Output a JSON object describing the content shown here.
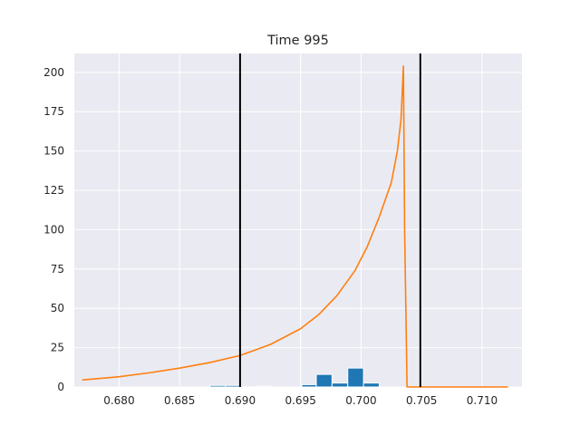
{
  "chart_data": {
    "type": "bar",
    "title": "Time 995",
    "xlabel": "",
    "ylabel": "",
    "xlim": [
      0.6763,
      0.7133
    ],
    "ylim": [
      0,
      212
    ],
    "grid": true,
    "legend": "none",
    "x_ticks": [
      0.68,
      0.685,
      0.69,
      0.695,
      0.7,
      0.705,
      0.71
    ],
    "x_tick_labels": [
      "0.680",
      "0.685",
      "0.690",
      "0.695",
      "0.700",
      "0.705",
      "0.710"
    ],
    "y_ticks": [
      0,
      25,
      50,
      75,
      100,
      125,
      150,
      175,
      200
    ],
    "y_tick_labels": [
      "0",
      "25",
      "50",
      "75",
      "100",
      "125",
      "150",
      "175",
      "200"
    ],
    "histogram": {
      "color": "#1f77b4",
      "bins": [
        {
          "x0": 0.6875,
          "x1": 0.6888,
          "count": 1
        },
        {
          "x0": 0.6888,
          "x1": 0.69,
          "count": 1
        },
        {
          "x0": 0.6913,
          "x1": 0.6926,
          "count": 0.6
        },
        {
          "x0": 0.6951,
          "x1": 0.6963,
          "count": 1.5
        },
        {
          "x0": 0.6963,
          "x1": 0.6976,
          "count": 8
        },
        {
          "x0": 0.6976,
          "x1": 0.6989,
          "count": 2.5
        },
        {
          "x0": 0.6989,
          "x1": 0.7002,
          "count": 12
        },
        {
          "x0": 0.7002,
          "x1": 0.7015,
          "count": 2.5
        }
      ]
    },
    "density_curve": {
      "color": "#ff7f0e",
      "x": [
        0.677,
        0.68,
        0.6825,
        0.685,
        0.6875,
        0.69,
        0.6925,
        0.695,
        0.6965,
        0.698,
        0.6995,
        0.7005,
        0.7015,
        0.7025,
        0.703,
        0.7033,
        0.7035,
        0.7036,
        0.7038,
        0.704,
        0.706,
        0.71,
        0.7121
      ],
      "y": [
        4.5,
        6.5,
        9,
        12,
        15.5,
        20,
        27,
        37,
        46,
        58,
        74,
        89,
        108,
        130,
        150,
        170,
        204,
        100,
        0,
        0,
        0,
        0,
        0
      ]
    },
    "vertical_lines": {
      "color": "#000000",
      "x": [
        0.69,
        0.7049
      ]
    }
  }
}
